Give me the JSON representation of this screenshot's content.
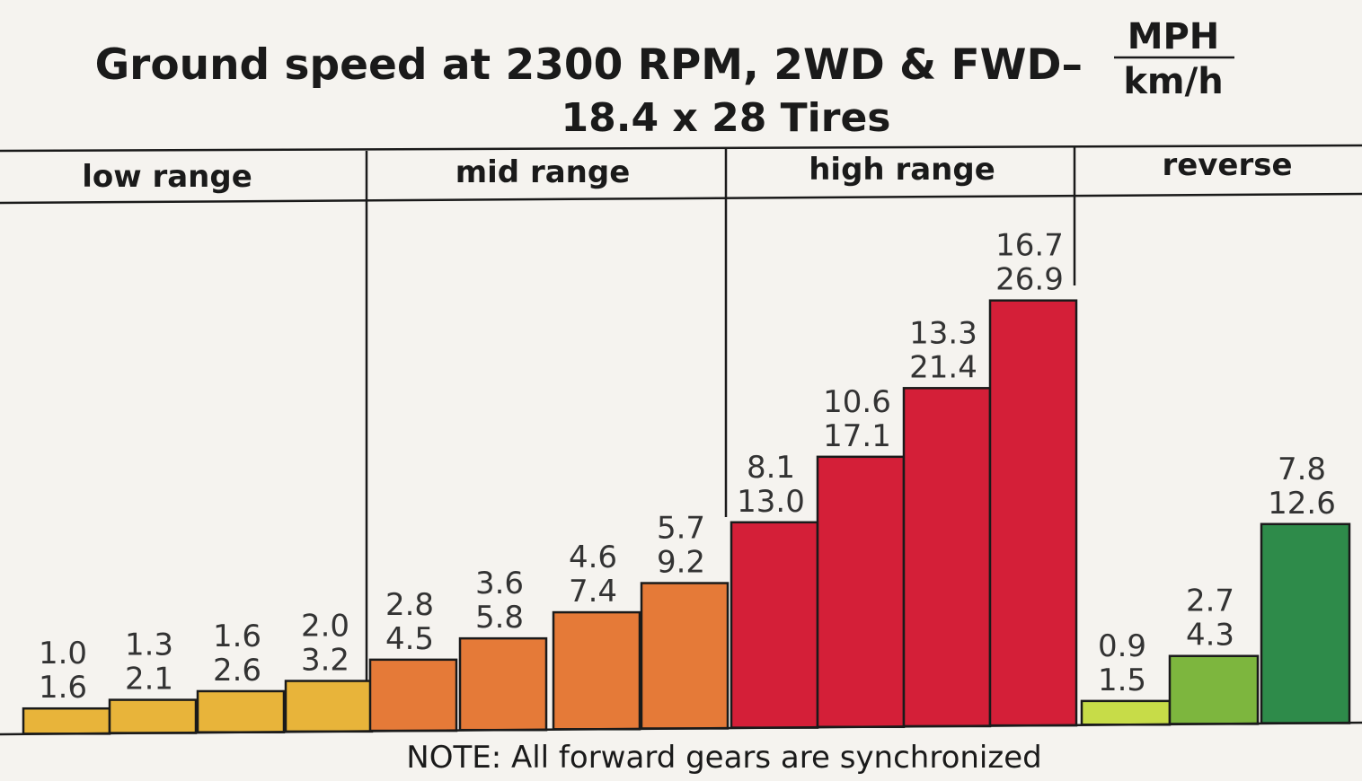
{
  "chart_data": {
    "type": "bar",
    "title": "Ground speed at 2300 RPM, 2WD & FWD–",
    "title_unit_numerator": "MPH",
    "title_unit_denominator": "km/h",
    "subtitle": "18.4 x 28 Tires",
    "note": "NOTE: All forward gears are synchronized",
    "ylim": [
      0,
      30
    ],
    "grid": false,
    "legend": "none",
    "groups": [
      {
        "name": "low range",
        "color": "#e8b43a",
        "bars": [
          {
            "mph": "1.0",
            "kmh": "1.6",
            "value": 1.6
          },
          {
            "mph": "1.3",
            "kmh": "2.1",
            "value": 2.1
          },
          {
            "mph": "1.6",
            "kmh": "2.6",
            "value": 2.6
          },
          {
            "mph": "2.0",
            "kmh": "3.2",
            "value": 3.2
          }
        ]
      },
      {
        "name": "mid range",
        "color": "#e57a38",
        "bars": [
          {
            "mph": "2.8",
            "kmh": "4.5",
            "value": 4.5
          },
          {
            "mph": "3.6",
            "kmh": "5.8",
            "value": 5.8
          },
          {
            "mph": "4.6",
            "kmh": "7.4",
            "value": 7.4
          },
          {
            "mph": "5.7",
            "kmh": "9.2",
            "value": 9.2
          }
        ]
      },
      {
        "name": "high range",
        "color": "#d41f38",
        "bars": [
          {
            "mph": "8.1",
            "kmh": "13.0",
            "value": 13.0
          },
          {
            "mph": "10.6",
            "kmh": "17.1",
            "value": 17.1
          },
          {
            "mph": "13.3",
            "kmh": "21.4",
            "value": 21.4
          },
          {
            "mph": "16.7",
            "kmh": "26.9",
            "value": 26.9
          }
        ]
      },
      {
        "name": "reverse",
        "colors": [
          "#c7dc48",
          "#7db63e",
          "#2e8b4a"
        ],
        "bars": [
          {
            "mph": "0.9",
            "kmh": "1.5",
            "value": 1.5
          },
          {
            "mph": "2.7",
            "kmh": "4.3",
            "value": 4.3
          },
          {
            "mph": "7.8",
            "kmh": "12.6",
            "value": 12.6
          }
        ]
      }
    ]
  }
}
